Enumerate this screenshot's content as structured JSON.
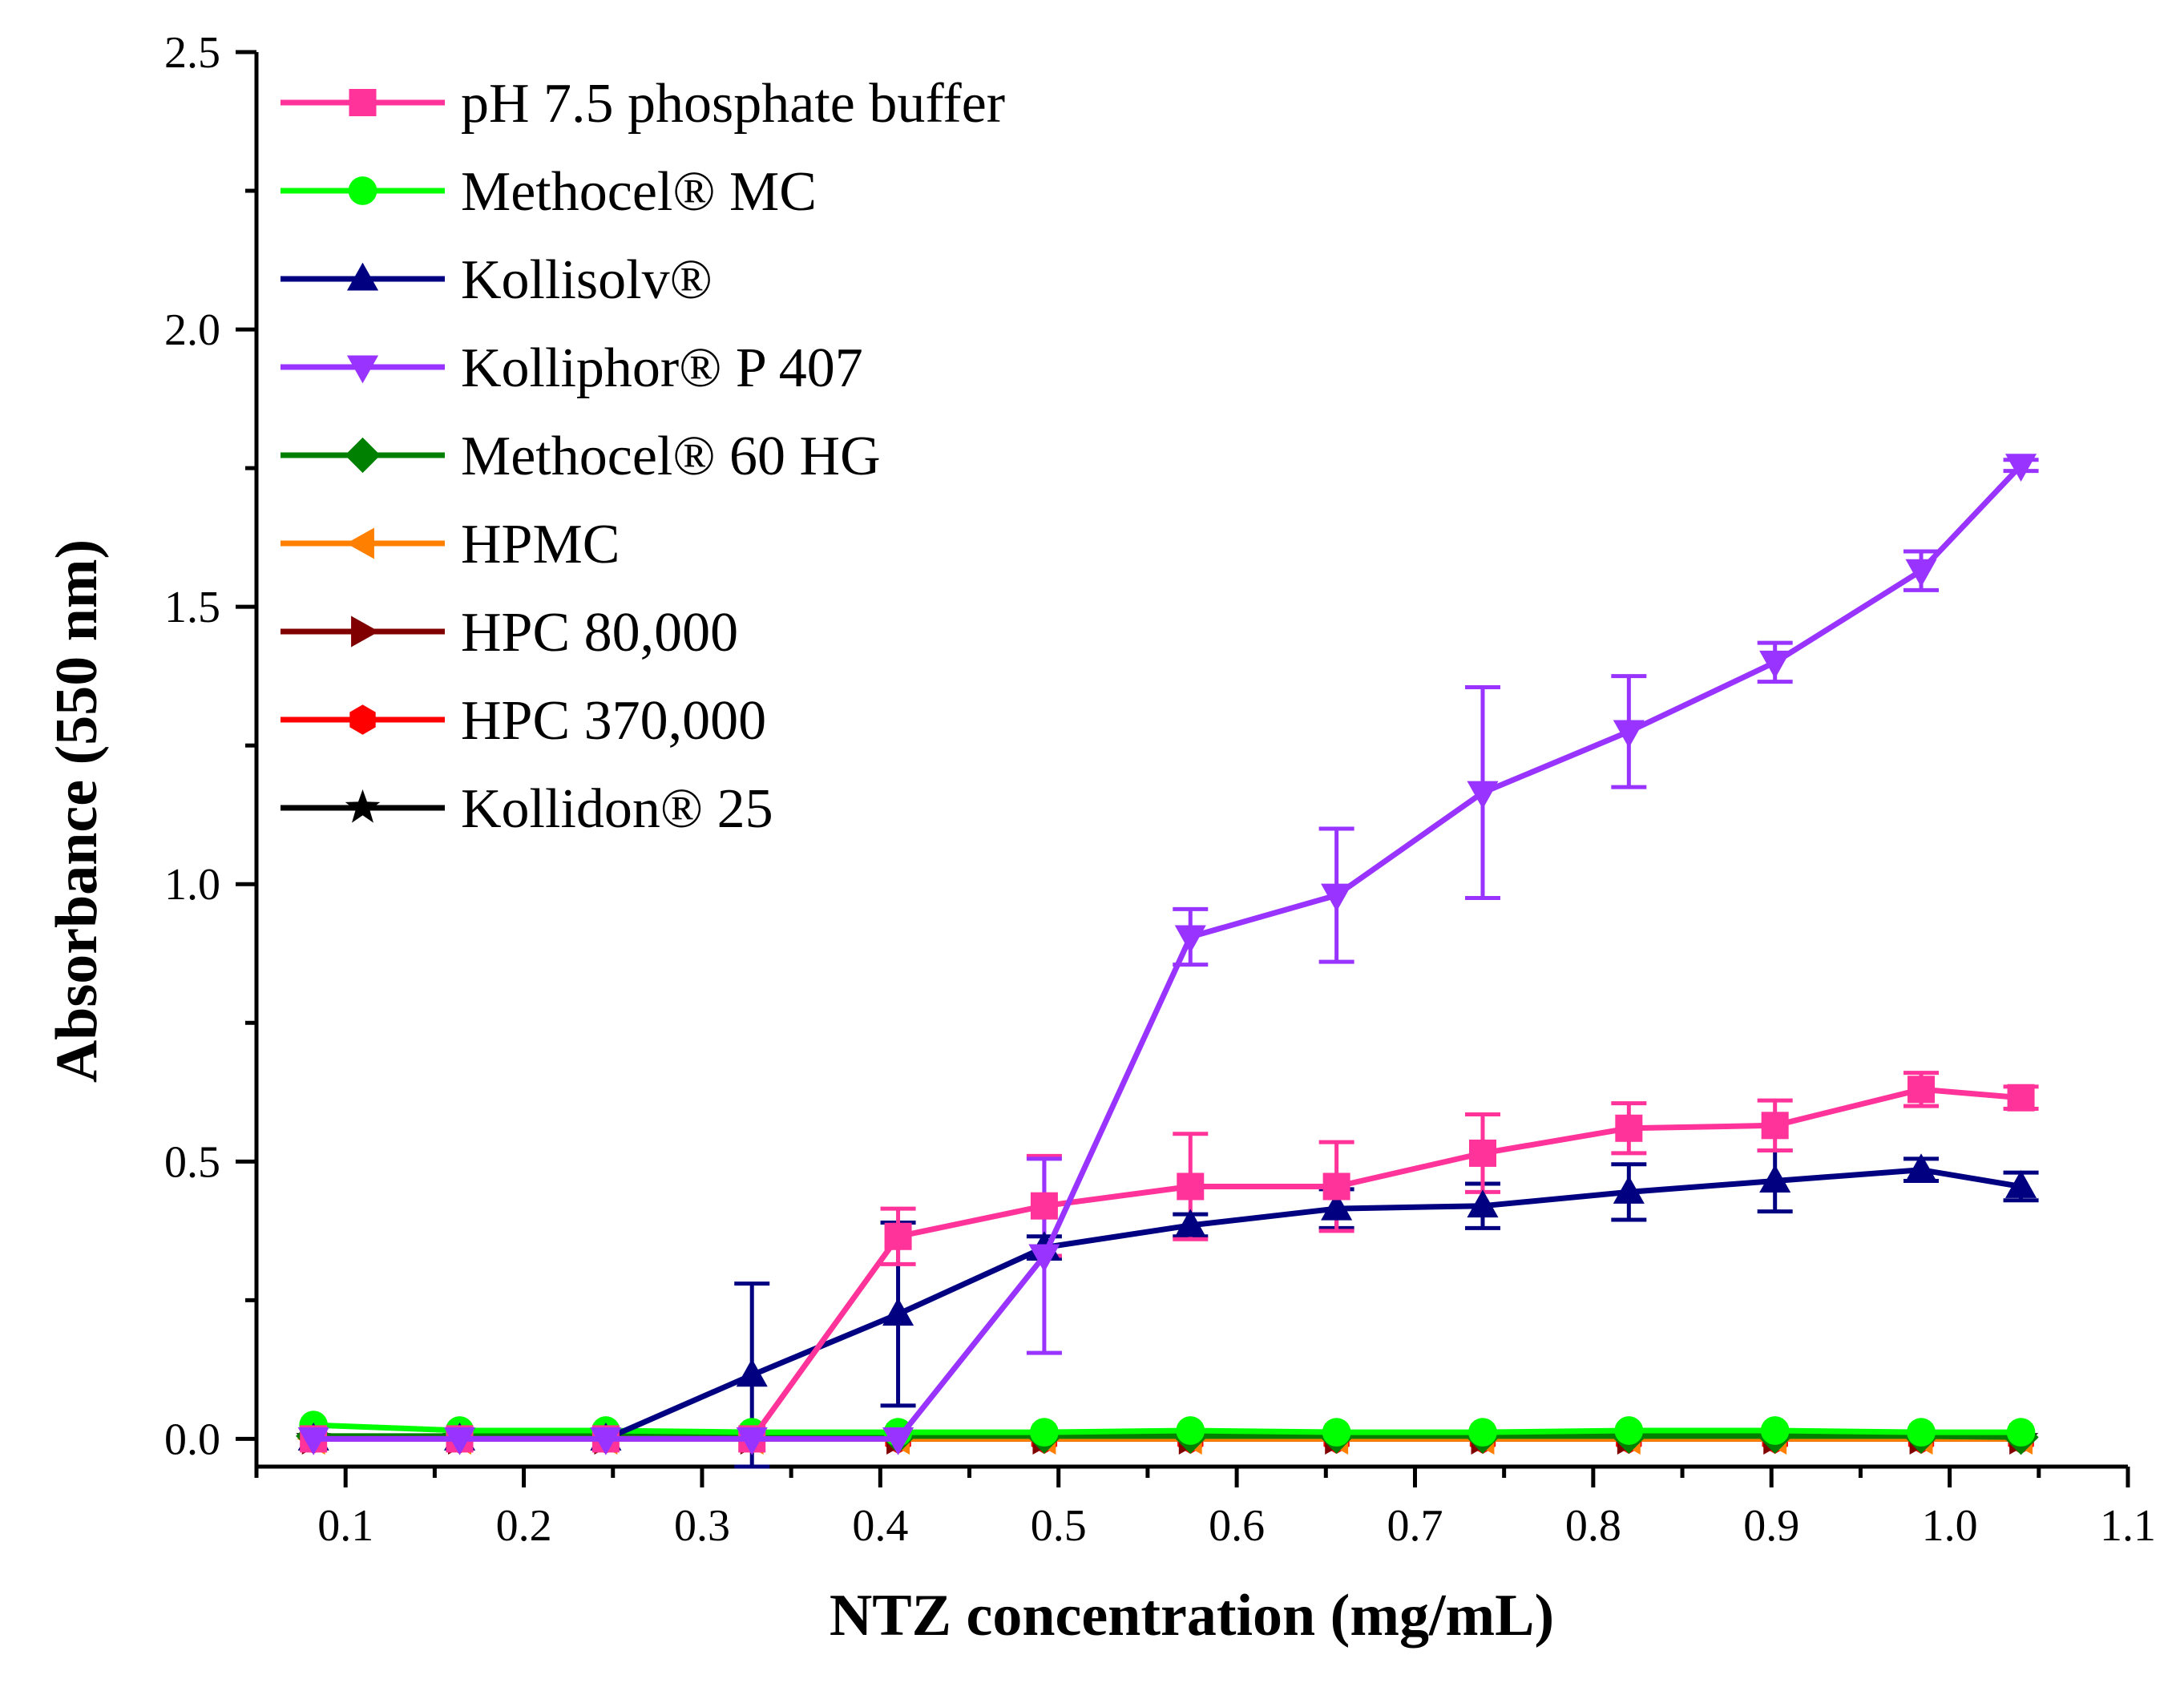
{
  "chart_data": {
    "type": "line",
    "title": "",
    "xlabel": "NTZ concentration (mg/mL)",
    "ylabel": "Absorbance (550 nm)",
    "xlim": [
      0.05,
      1.1
    ],
    "ylim": [
      -0.05,
      2.5
    ],
    "xticks": [
      "0.1",
      "0.2",
      "0.3",
      "0.4",
      "0.5",
      "0.6",
      "0.7",
      "0.8",
      "0.9",
      "1.0",
      "1.1"
    ],
    "yticks": [
      "0.0",
      "0.5",
      "1.0",
      "1.5",
      "2.0",
      "2.5"
    ],
    "grid": false,
    "legend_position": "top-left",
    "x": [
      0.082,
      0.164,
      0.246,
      0.328,
      0.41,
      0.492,
      0.574,
      0.656,
      0.738,
      0.82,
      0.902,
      0.984,
      1.04
    ],
    "series": [
      {
        "name": "pH 7.5 phosphate buffer",
        "color": "#ff3399",
        "marker": "square",
        "values": [
          0.0,
          0.0,
          0.0,
          0.0,
          0.365,
          0.42,
          0.455,
          0.455,
          0.515,
          0.56,
          0.565,
          0.63,
          0.615
        ],
        "errors": [
          0,
          0,
          0,
          0,
          0.05,
          0.09,
          0.095,
          0.08,
          0.07,
          0.045,
          0.045,
          0.03,
          0.02
        ]
      },
      {
        "name": "Methocel® MC",
        "color": "#00ff00",
        "marker": "circle",
        "values": [
          0.025,
          0.015,
          0.015,
          0.012,
          0.012,
          0.012,
          0.015,
          0.012,
          0.012,
          0.015,
          0.015,
          0.012,
          0.012
        ],
        "errors": []
      },
      {
        "name": "Kollisolv®",
        "color": "#000080",
        "marker": "triangle-up",
        "values": [
          0.0,
          0.0,
          0.0,
          0.115,
          0.225,
          0.345,
          0.385,
          0.415,
          0.42,
          0.445,
          0.465,
          0.485,
          0.455
        ],
        "errors": [
          0,
          0,
          0,
          0.165,
          0.165,
          0.02,
          0.02,
          0.035,
          0.04,
          0.05,
          0.055,
          0.02,
          0.025
        ]
      },
      {
        "name": "Kolliphor® P 407",
        "color": "#9933ff",
        "marker": "triangle-down",
        "values": [
          0.0,
          0.0,
          0.0,
          0.0,
          0.0,
          0.33,
          0.905,
          0.98,
          1.165,
          1.275,
          1.4,
          1.565,
          1.755
        ],
        "errors": [
          0,
          0,
          0,
          0,
          0,
          0.175,
          0.05,
          0.12,
          0.19,
          0.1,
          0.035,
          0.035,
          0.01
        ]
      },
      {
        "name": "Methocel® 60 HG",
        "color": "#008000",
        "marker": "diamond",
        "values": [
          0.005,
          0.005,
          0.005,
          0.005,
          0.005,
          0.005,
          0.005,
          0.005,
          0.005,
          0.005,
          0.005,
          0.005,
          0.003
        ],
        "errors": []
      },
      {
        "name": "HPMC",
        "color": "#ff8000",
        "marker": "triangle-left",
        "values": [
          0.0,
          0.0,
          0.0,
          0.0,
          0.0,
          0.0,
          0.0,
          0.0,
          0.0,
          0.0,
          0.0,
          0.0,
          0.0
        ],
        "errors": []
      },
      {
        "name": "HPC 80,000",
        "color": "#800000",
        "marker": "triangle-right",
        "values": [
          0.0,
          0.0,
          0.0,
          0.0,
          0.0,
          0.0,
          0.0,
          0.0,
          0.0,
          0.0,
          0.0,
          0.0,
          0.0
        ],
        "errors": []
      },
      {
        "name": "HPC 370,000",
        "color": "#ff0000",
        "marker": "hexagon",
        "values": [
          0.0,
          0.0,
          0.0,
          0.0,
          0.0,
          0.0,
          0.0,
          0.0,
          0.0,
          0.0,
          0.0,
          0.0,
          0.0
        ],
        "errors": []
      },
      {
        "name": "Kollidon® 25",
        "color": "#000000",
        "marker": "star",
        "values": [
          0.0,
          0.0,
          0.0,
          0.0,
          0.0,
          0.0,
          0.0,
          0.0,
          0.0,
          0.0,
          0.0,
          0.0,
          0.0
        ],
        "errors": []
      }
    ]
  }
}
